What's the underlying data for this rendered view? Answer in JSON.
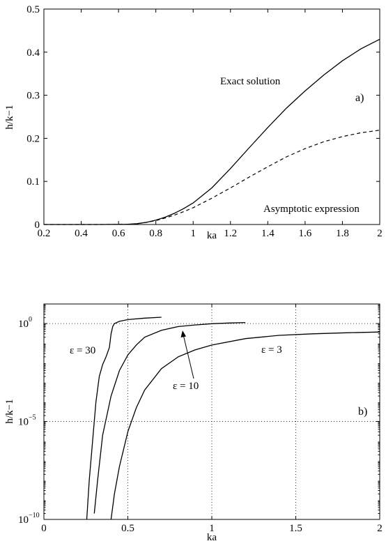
{
  "chart_data": [
    {
      "type": "line",
      "panel_label": "a)",
      "xlabel": "ka",
      "ylabel": "h/k−1",
      "xlim": [
        0.2,
        2
      ],
      "ylim": [
        0,
        0.5
      ],
      "xticks": [
        "0.2",
        "0.4",
        "0.6",
        "0.8",
        "1",
        "1.2",
        "1.4",
        "1.6",
        "1.8",
        "2"
      ],
      "yticks": [
        "0",
        "0.1",
        "0.2",
        "0.3",
        "0.4",
        "0.5"
      ],
      "grid": false,
      "series": [
        {
          "name": "Exact solution",
          "style": "solid",
          "x": [
            0.2,
            0.5,
            0.65,
            0.7,
            0.75,
            0.8,
            0.85,
            0.9,
            0.95,
            1.0,
            1.1,
            1.2,
            1.3,
            1.4,
            1.5,
            1.6,
            1.7,
            1.8,
            1.9,
            2.0
          ],
          "y": [
            0,
            0,
            0.0005,
            0.002,
            0.005,
            0.01,
            0.017,
            0.026,
            0.037,
            0.05,
            0.085,
            0.13,
            0.178,
            0.225,
            0.27,
            0.31,
            0.347,
            0.38,
            0.408,
            0.43
          ]
        },
        {
          "name": "Asymptotic expression",
          "style": "dashed",
          "x": [
            0.2,
            0.5,
            0.65,
            0.7,
            0.75,
            0.8,
            0.85,
            0.9,
            0.95,
            1.0,
            1.1,
            1.2,
            1.3,
            1.4,
            1.5,
            1.6,
            1.7,
            1.8,
            1.9,
            2.0
          ],
          "y": [
            0,
            0,
            0.0005,
            0.002,
            0.005,
            0.009,
            0.015,
            0.022,
            0.03,
            0.039,
            0.061,
            0.085,
            0.11,
            0.134,
            0.157,
            0.176,
            0.192,
            0.204,
            0.213,
            0.219
          ]
        }
      ]
    },
    {
      "type": "line",
      "panel_label": "b)",
      "xlabel": "ka",
      "ylabel": "h/k−1",
      "xlim": [
        0,
        2
      ],
      "ylim": [
        1e-10,
        10
      ],
      "yscale": "log",
      "xticks": [
        "0",
        "0.5",
        "1",
        "1.5",
        "2"
      ],
      "xtick_values": [
        0,
        0.5,
        1,
        1.5,
        2
      ],
      "ytick_values": [
        1e-10,
        1e-05,
        1
      ],
      "ytick_base": "10",
      "ytick_exponents": [
        "−10",
        "−5",
        "0"
      ],
      "grid": true,
      "annotation_arrow_label": "ε = 10",
      "series": [
        {
          "name": "ε = 30",
          "x": [
            0.255,
            0.27,
            0.29,
            0.31,
            0.33,
            0.35,
            0.37,
            0.39,
            0.4,
            0.41,
            0.42,
            0.45,
            0.5,
            0.6,
            0.7
          ],
          "y": [
            1e-10,
            1e-08,
            1e-06,
            0.0001,
            0.002,
            0.008,
            0.02,
            0.06,
            0.3,
            0.7,
            1.0,
            1.3,
            1.6,
            1.9,
            2.1
          ]
        },
        {
          "name": "ε = 10",
          "x": [
            0.3,
            0.32,
            0.35,
            0.4,
            0.45,
            0.5,
            0.55,
            0.6,
            0.7,
            0.8,
            0.9,
            1.0,
            1.1,
            1.2
          ],
          "y": [
            2e-10,
            1e-08,
            2e-06,
            0.0002,
            0.004,
            0.025,
            0.08,
            0.2,
            0.45,
            0.7,
            0.85,
            0.98,
            1.07,
            1.13
          ]
        },
        {
          "name": "ε = 3",
          "x": [
            0.4,
            0.42,
            0.45,
            0.5,
            0.55,
            0.6,
            0.7,
            0.8,
            0.9,
            1.0,
            1.2,
            1.4,
            1.6,
            1.8,
            2.0
          ],
          "y": [
            1e-10,
            2e-09,
            5e-08,
            3e-06,
            5e-05,
            0.0004,
            0.005,
            0.02,
            0.045,
            0.08,
            0.17,
            0.25,
            0.3,
            0.34,
            0.37
          ]
        }
      ]
    }
  ]
}
